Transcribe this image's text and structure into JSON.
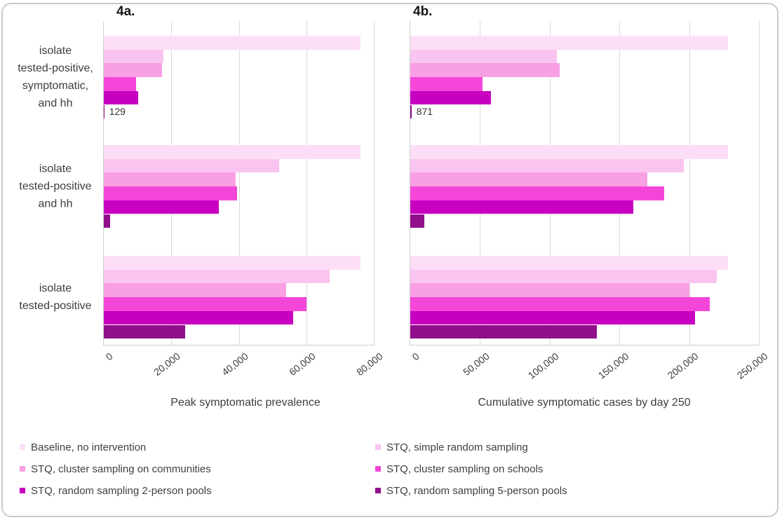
{
  "figure": {
    "panels": [
      {
        "label": "4a."
      },
      {
        "label": "4b."
      }
    ]
  },
  "chart_data": [
    {
      "type": "bar",
      "orientation": "horizontal",
      "panel_label": "4a.",
      "xlabel": "Peak symptomatic prevalence",
      "xlim": [
        0,
        80000
      ],
      "xticks": [
        0,
        20000,
        40000,
        60000,
        80000
      ],
      "xtick_labels": [
        "0",
        "20,000",
        "40,000",
        "60,000",
        "80,000"
      ],
      "grid": true,
      "show_category_labels": true,
      "categories": [
        "isolate tested-positive, symptomatic, and hh",
        "isolate tested-positive and hh",
        "isolate tested-positive"
      ],
      "category_lines": [
        [
          "isolate",
          "tested-positive,",
          "symptomatic,",
          "and hh"
        ],
        [
          "isolate",
          "tested-positive",
          "and hh"
        ],
        [
          "isolate",
          "tested-positive"
        ]
      ],
      "series": [
        {
          "name": "Baseline, no intervention",
          "color": "#fcdef6",
          "values": [
            76000,
            76000,
            76000
          ]
        },
        {
          "name": "STQ, simple random sampling",
          "color": "#fac4f0",
          "values": [
            17700,
            52000,
            67000
          ]
        },
        {
          "name": "STQ, cluster sampling on communities",
          "color": "#f9a0e5",
          "values": [
            17200,
            39000,
            54000
          ]
        },
        {
          "name": "STQ, cluster sampling on schools",
          "color": "#f546da",
          "values": [
            9600,
            39500,
            60000
          ]
        },
        {
          "name": "STQ, random sampling 2-person pools",
          "color": "#c800c0",
          "values": [
            10100,
            34000,
            56000
          ]
        },
        {
          "name": "STQ, random sampling 5-person pools",
          "color": "#910f8c",
          "values": [
            129,
            1800,
            24000
          ]
        }
      ],
      "data_labels": [
        {
          "category_index": 0,
          "series_index": 5,
          "text": "129"
        }
      ]
    },
    {
      "type": "bar",
      "orientation": "horizontal",
      "panel_label": "4b.",
      "xlabel": "Cumulative symptomatic cases by day 250",
      "xlim": [
        0,
        250000
      ],
      "xticks": [
        0,
        50000,
        100000,
        150000,
        200000,
        250000
      ],
      "xtick_labels": [
        "0",
        "50,000",
        "100,000",
        "150,000",
        "200,000",
        "250,000"
      ],
      "grid": true,
      "show_category_labels": false,
      "categories": [
        "isolate tested-positive, symptomatic, and hh",
        "isolate tested-positive and hh",
        "isolate tested-positive"
      ],
      "series": [
        {
          "name": "Baseline, no intervention",
          "color": "#fcdef6",
          "values": [
            228000,
            228000,
            228000
          ]
        },
        {
          "name": "STQ, simple random sampling",
          "color": "#fac4f0",
          "values": [
            105000,
            196000,
            220000
          ]
        },
        {
          "name": "STQ, cluster sampling on communities",
          "color": "#f9a0e5",
          "values": [
            107000,
            170000,
            200000
          ]
        },
        {
          "name": "STQ, cluster sampling on schools",
          "color": "#f546da",
          "values": [
            52000,
            182000,
            215000
          ]
        },
        {
          "name": "STQ, random sampling 2-person pools",
          "color": "#c800c0",
          "values": [
            58000,
            160000,
            204000
          ]
        },
        {
          "name": "STQ, random sampling 5-person pools",
          "color": "#910f8c",
          "values": [
            871,
            10000,
            134000
          ]
        }
      ],
      "data_labels": [
        {
          "category_index": 0,
          "series_index": 5,
          "text": "871"
        }
      ]
    }
  ],
  "legend": {
    "position": "bottom",
    "columns": 2,
    "items": [
      {
        "label": "Baseline, no intervention",
        "color": "#fcdef6"
      },
      {
        "label": "STQ, simple random sampling",
        "color": "#fac4f0"
      },
      {
        "label": "STQ, cluster sampling on communities",
        "color": "#f9a0e5"
      },
      {
        "label": "STQ, cluster sampling on schools",
        "color": "#f546da"
      },
      {
        "label": "STQ, random sampling 2-person pools",
        "color": "#c800c0"
      },
      {
        "label": "STQ, random sampling 5-person pools",
        "color": "#910f8c"
      }
    ]
  }
}
